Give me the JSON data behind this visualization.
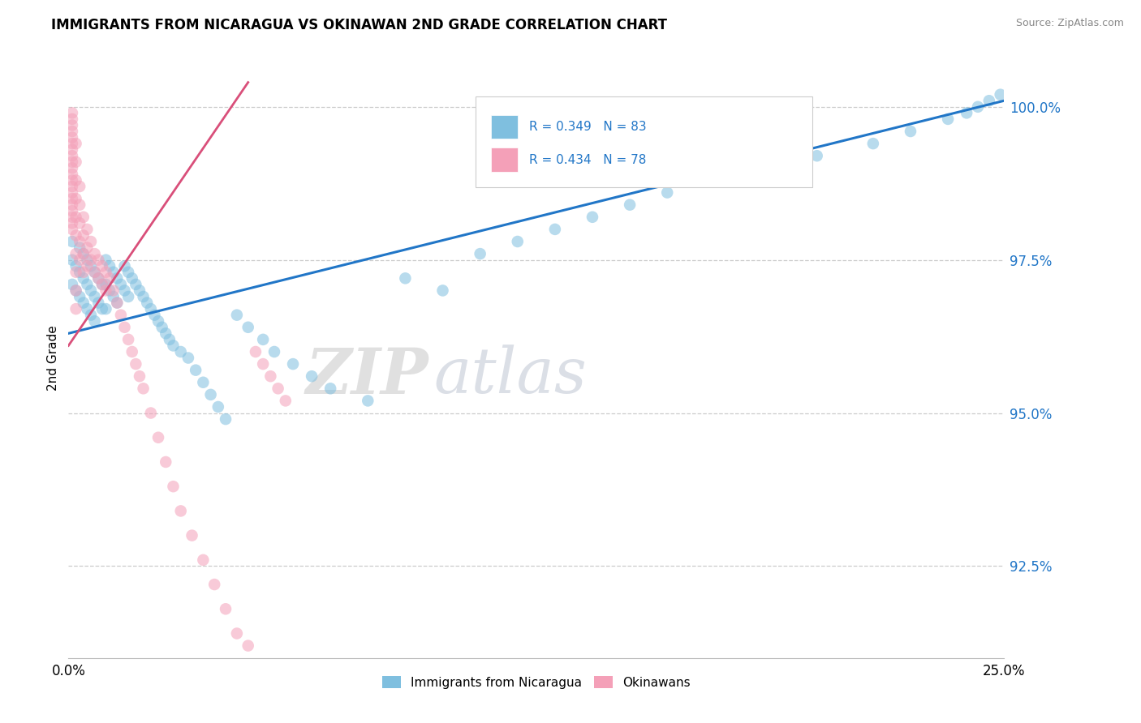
{
  "title": "IMMIGRANTS FROM NICARAGUA VS OKINAWAN 2ND GRADE CORRELATION CHART",
  "source_text": "Source: ZipAtlas.com",
  "ylabel": "2nd Grade",
  "xlim": [
    0.0,
    0.25
  ],
  "ylim": [
    0.91,
    1.008
  ],
  "xtick_labels": [
    "0.0%",
    "25.0%"
  ],
  "xtick_positions": [
    0.0,
    0.25
  ],
  "ytick_labels": [
    "92.5%",
    "95.0%",
    "97.5%",
    "100.0%"
  ],
  "ytick_positions": [
    0.925,
    0.95,
    0.975,
    1.0
  ],
  "legend_label1": "Immigrants from Nicaragua",
  "legend_label2": "Okinawans",
  "r1": 0.349,
  "n1": 83,
  "r2": 0.434,
  "n2": 78,
  "color_blue": "#7fbfdf",
  "color_pink": "#f4a0b8",
  "line_color_blue": "#2176c7",
  "line_color_pink": "#d94f7a",
  "watermark_zip": "ZIP",
  "watermark_atlas": "atlas",
  "blue_trend_x": [
    0.0,
    0.25
  ],
  "blue_trend_y": [
    0.963,
    1.001
  ],
  "pink_trend_x": [
    0.0,
    0.048
  ],
  "pink_trend_y": [
    0.961,
    1.004
  ],
  "blue_pts_x": [
    0.001,
    0.001,
    0.001,
    0.002,
    0.002,
    0.003,
    0.003,
    0.003,
    0.004,
    0.004,
    0.004,
    0.005,
    0.005,
    0.005,
    0.006,
    0.006,
    0.006,
    0.007,
    0.007,
    0.007,
    0.008,
    0.008,
    0.009,
    0.009,
    0.01,
    0.01,
    0.01,
    0.011,
    0.011,
    0.012,
    0.012,
    0.013,
    0.013,
    0.014,
    0.015,
    0.015,
    0.016,
    0.016,
    0.017,
    0.018,
    0.019,
    0.02,
    0.021,
    0.022,
    0.023,
    0.024,
    0.025,
    0.026,
    0.027,
    0.028,
    0.03,
    0.032,
    0.034,
    0.036,
    0.038,
    0.04,
    0.042,
    0.045,
    0.048,
    0.052,
    0.055,
    0.06,
    0.065,
    0.07,
    0.08,
    0.09,
    0.1,
    0.11,
    0.12,
    0.13,
    0.14,
    0.15,
    0.16,
    0.17,
    0.185,
    0.2,
    0.215,
    0.225,
    0.235,
    0.24,
    0.243,
    0.246,
    0.249
  ],
  "blue_pts_y": [
    0.978,
    0.975,
    0.971,
    0.974,
    0.97,
    0.977,
    0.973,
    0.969,
    0.976,
    0.972,
    0.968,
    0.975,
    0.971,
    0.967,
    0.974,
    0.97,
    0.966,
    0.973,
    0.969,
    0.965,
    0.972,
    0.968,
    0.971,
    0.967,
    0.975,
    0.971,
    0.967,
    0.974,
    0.97,
    0.973,
    0.969,
    0.972,
    0.968,
    0.971,
    0.974,
    0.97,
    0.973,
    0.969,
    0.972,
    0.971,
    0.97,
    0.969,
    0.968,
    0.967,
    0.966,
    0.965,
    0.964,
    0.963,
    0.962,
    0.961,
    0.96,
    0.959,
    0.957,
    0.955,
    0.953,
    0.951,
    0.949,
    0.966,
    0.964,
    0.962,
    0.96,
    0.958,
    0.956,
    0.954,
    0.952,
    0.972,
    0.97,
    0.976,
    0.978,
    0.98,
    0.982,
    0.984,
    0.986,
    0.988,
    0.99,
    0.992,
    0.994,
    0.996,
    0.998,
    0.999,
    1.0,
    1.001,
    1.002
  ],
  "pink_pts_x": [
    0.001,
    0.001,
    0.001,
    0.001,
    0.001,
    0.001,
    0.001,
    0.001,
    0.001,
    0.001,
    0.001,
    0.001,
    0.001,
    0.001,
    0.001,
    0.001,
    0.001,
    0.001,
    0.001,
    0.001,
    0.002,
    0.002,
    0.002,
    0.002,
    0.002,
    0.002,
    0.002,
    0.002,
    0.002,
    0.002,
    0.003,
    0.003,
    0.003,
    0.003,
    0.003,
    0.004,
    0.004,
    0.004,
    0.004,
    0.005,
    0.005,
    0.005,
    0.006,
    0.006,
    0.007,
    0.007,
    0.008,
    0.008,
    0.009,
    0.009,
    0.01,
    0.01,
    0.011,
    0.012,
    0.013,
    0.014,
    0.015,
    0.016,
    0.017,
    0.018,
    0.019,
    0.02,
    0.022,
    0.024,
    0.026,
    0.028,
    0.03,
    0.033,
    0.036,
    0.039,
    0.042,
    0.045,
    0.048,
    0.05,
    0.052,
    0.054,
    0.056,
    0.058
  ],
  "pink_pts_y": [
    0.999,
    0.998,
    0.997,
    0.996,
    0.995,
    0.994,
    0.993,
    0.992,
    0.991,
    0.99,
    0.989,
    0.988,
    0.987,
    0.986,
    0.985,
    0.984,
    0.983,
    0.982,
    0.981,
    0.98,
    0.994,
    0.991,
    0.988,
    0.985,
    0.982,
    0.979,
    0.976,
    0.973,
    0.97,
    0.967,
    0.987,
    0.984,
    0.981,
    0.978,
    0.975,
    0.982,
    0.979,
    0.976,
    0.973,
    0.98,
    0.977,
    0.974,
    0.978,
    0.975,
    0.976,
    0.973,
    0.975,
    0.972,
    0.974,
    0.971,
    0.973,
    0.97,
    0.972,
    0.97,
    0.968,
    0.966,
    0.964,
    0.962,
    0.96,
    0.958,
    0.956,
    0.954,
    0.95,
    0.946,
    0.942,
    0.938,
    0.934,
    0.93,
    0.926,
    0.922,
    0.918,
    0.914,
    0.912,
    0.96,
    0.958,
    0.956,
    0.954,
    0.952
  ]
}
